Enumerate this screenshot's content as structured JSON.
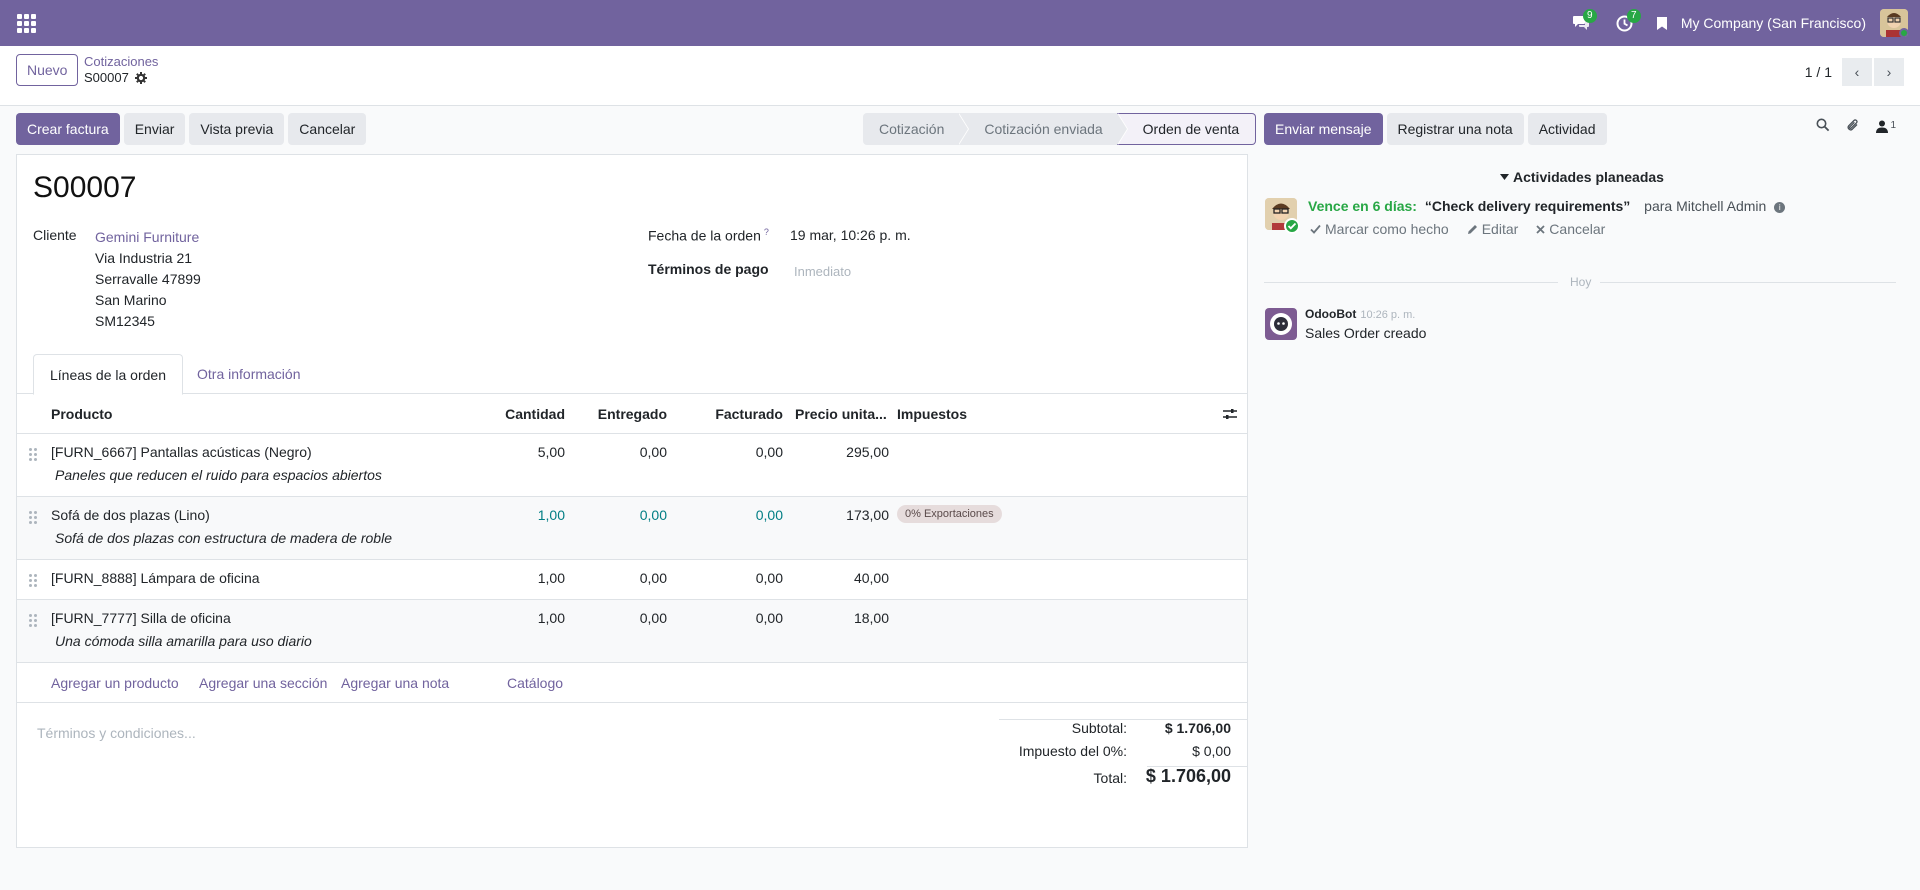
{
  "topbar": {
    "messages_count": "9",
    "activities_count": "7",
    "company": "My Company (San Francisco)"
  },
  "control": {
    "new_label": "Nuevo",
    "breadcrumb_parent": "Cotizaciones",
    "breadcrumb_current": "S00007",
    "pager": "1 / 1"
  },
  "actions": {
    "create_invoice": "Crear factura",
    "send": "Enviar",
    "preview": "Vista previa",
    "cancel": "Cancelar"
  },
  "status": {
    "stages": [
      "Cotización",
      "Cotización enviada",
      "Orden de venta"
    ],
    "active": "Orden de venta"
  },
  "form": {
    "title": "S00007",
    "customer_label": "Cliente",
    "customer_name": "Gemini Furniture",
    "address": [
      "Via Industria 21",
      "Serravalle 47899",
      "San Marino",
      "SM12345"
    ],
    "order_date_label": "Fecha de la orden",
    "order_date_help": "?",
    "order_date": "19 mar, 10:26 p. m.",
    "payment_terms_label": "Términos de pago",
    "payment_terms_placeholder": "Inmediato"
  },
  "tabs": {
    "order_lines": "Líneas de la orden",
    "other_info": "Otra información"
  },
  "table": {
    "headers": {
      "product": "Producto",
      "qty": "Cantidad",
      "delivered": "Entregado",
      "invoiced": "Facturado",
      "price": "Precio unita...",
      "taxes": "Impuestos"
    },
    "rows": [
      {
        "product": "[FURN_6667] Pantallas acústicas (Negro)",
        "description": "Paneles que reducen el ruido para espacios abiertos",
        "qty": "5,00",
        "delivered": "0,00",
        "invoiced": "0,00",
        "price": "295,00",
        "tax": ""
      },
      {
        "product": "Sofá de dos plazas (Lino)",
        "description": "Sofá de dos plazas con estructura de madera de roble",
        "qty": "1,00",
        "delivered": "0,00",
        "invoiced": "0,00",
        "price": "173,00",
        "tax": "0% Exportaciones"
      },
      {
        "product": "[FURN_8888] Lámpara de oficina",
        "description": "",
        "qty": "1,00",
        "delivered": "0,00",
        "invoiced": "0,00",
        "price": "40,00",
        "tax": ""
      },
      {
        "product": "[FURN_7777] Silla de oficina",
        "description": "Una cómoda silla amarilla para uso diario",
        "qty": "1,00",
        "delivered": "0,00",
        "invoiced": "0,00",
        "price": "18,00",
        "tax": ""
      }
    ],
    "add_product": "Agregar un producto",
    "add_section": "Agregar una sección",
    "add_note": "Agregar una nota",
    "catalog": "Catálogo"
  },
  "terms_placeholder": "Términos y condiciones...",
  "totals": {
    "subtotal_label": "Subtotal:",
    "subtotal": "$ 1.706,00",
    "tax_label": "Impuesto del 0%:",
    "tax": "$ 0,00",
    "total_label": "Total:",
    "total": "$ 1.706,00"
  },
  "chatter": {
    "send_message": "Enviar mensaje",
    "log_note": "Registrar una nota",
    "activity": "Actividad",
    "followers_count": "1",
    "planned_header": "Actividades planeadas",
    "due": "Vence en 6 días:",
    "summary": "“Check delivery requirements”",
    "assignee": "para Mitchell Admin",
    "mark_done": "Marcar como hecho",
    "edit": "Editar",
    "cancel": "Cancelar",
    "today": "Hoy",
    "author": "OdooBot",
    "time": "10:26 p. m.",
    "body": "Sales Order creado"
  },
  "colors": {
    "brand": "#71639e",
    "success": "#28a745",
    "link_blue": "#017e84"
  }
}
